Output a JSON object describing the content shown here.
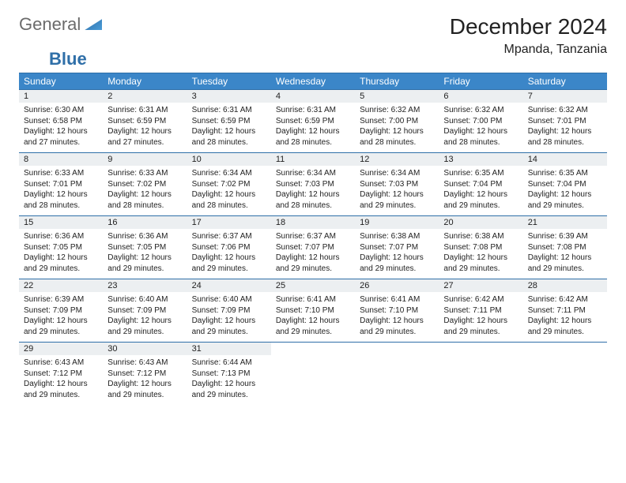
{
  "logo": {
    "word1": "General",
    "word2": "Blue"
  },
  "title": "December 2024",
  "location": "Mpanda, Tanzania",
  "colors": {
    "header_bg": "#3b86c8",
    "header_text": "#ffffff",
    "border": "#2f6fa8",
    "daynum_bg": "#eceff1",
    "text": "#222222",
    "logo_gray": "#6b6b6b",
    "logo_blue": "#2f6fa8",
    "page_bg": "#ffffff"
  },
  "weekdays": [
    "Sunday",
    "Monday",
    "Tuesday",
    "Wednesday",
    "Thursday",
    "Friday",
    "Saturday"
  ],
  "days": [
    {
      "n": 1,
      "sr": "6:30 AM",
      "ss": "6:58 PM",
      "dl": "12 hours and 27 minutes."
    },
    {
      "n": 2,
      "sr": "6:31 AM",
      "ss": "6:59 PM",
      "dl": "12 hours and 27 minutes."
    },
    {
      "n": 3,
      "sr": "6:31 AM",
      "ss": "6:59 PM",
      "dl": "12 hours and 28 minutes."
    },
    {
      "n": 4,
      "sr": "6:31 AM",
      "ss": "6:59 PM",
      "dl": "12 hours and 28 minutes."
    },
    {
      "n": 5,
      "sr": "6:32 AM",
      "ss": "7:00 PM",
      "dl": "12 hours and 28 minutes."
    },
    {
      "n": 6,
      "sr": "6:32 AM",
      "ss": "7:00 PM",
      "dl": "12 hours and 28 minutes."
    },
    {
      "n": 7,
      "sr": "6:32 AM",
      "ss": "7:01 PM",
      "dl": "12 hours and 28 minutes."
    },
    {
      "n": 8,
      "sr": "6:33 AM",
      "ss": "7:01 PM",
      "dl": "12 hours and 28 minutes."
    },
    {
      "n": 9,
      "sr": "6:33 AM",
      "ss": "7:02 PM",
      "dl": "12 hours and 28 minutes."
    },
    {
      "n": 10,
      "sr": "6:34 AM",
      "ss": "7:02 PM",
      "dl": "12 hours and 28 minutes."
    },
    {
      "n": 11,
      "sr": "6:34 AM",
      "ss": "7:03 PM",
      "dl": "12 hours and 28 minutes."
    },
    {
      "n": 12,
      "sr": "6:34 AM",
      "ss": "7:03 PM",
      "dl": "12 hours and 29 minutes."
    },
    {
      "n": 13,
      "sr": "6:35 AM",
      "ss": "7:04 PM",
      "dl": "12 hours and 29 minutes."
    },
    {
      "n": 14,
      "sr": "6:35 AM",
      "ss": "7:04 PM",
      "dl": "12 hours and 29 minutes."
    },
    {
      "n": 15,
      "sr": "6:36 AM",
      "ss": "7:05 PM",
      "dl": "12 hours and 29 minutes."
    },
    {
      "n": 16,
      "sr": "6:36 AM",
      "ss": "7:05 PM",
      "dl": "12 hours and 29 minutes."
    },
    {
      "n": 17,
      "sr": "6:37 AM",
      "ss": "7:06 PM",
      "dl": "12 hours and 29 minutes."
    },
    {
      "n": 18,
      "sr": "6:37 AM",
      "ss": "7:07 PM",
      "dl": "12 hours and 29 minutes."
    },
    {
      "n": 19,
      "sr": "6:38 AM",
      "ss": "7:07 PM",
      "dl": "12 hours and 29 minutes."
    },
    {
      "n": 20,
      "sr": "6:38 AM",
      "ss": "7:08 PM",
      "dl": "12 hours and 29 minutes."
    },
    {
      "n": 21,
      "sr": "6:39 AM",
      "ss": "7:08 PM",
      "dl": "12 hours and 29 minutes."
    },
    {
      "n": 22,
      "sr": "6:39 AM",
      "ss": "7:09 PM",
      "dl": "12 hours and 29 minutes."
    },
    {
      "n": 23,
      "sr": "6:40 AM",
      "ss": "7:09 PM",
      "dl": "12 hours and 29 minutes."
    },
    {
      "n": 24,
      "sr": "6:40 AM",
      "ss": "7:09 PM",
      "dl": "12 hours and 29 minutes."
    },
    {
      "n": 25,
      "sr": "6:41 AM",
      "ss": "7:10 PM",
      "dl": "12 hours and 29 minutes."
    },
    {
      "n": 26,
      "sr": "6:41 AM",
      "ss": "7:10 PM",
      "dl": "12 hours and 29 minutes."
    },
    {
      "n": 27,
      "sr": "6:42 AM",
      "ss": "7:11 PM",
      "dl": "12 hours and 29 minutes."
    },
    {
      "n": 28,
      "sr": "6:42 AM",
      "ss": "7:11 PM",
      "dl": "12 hours and 29 minutes."
    },
    {
      "n": 29,
      "sr": "6:43 AM",
      "ss": "7:12 PM",
      "dl": "12 hours and 29 minutes."
    },
    {
      "n": 30,
      "sr": "6:43 AM",
      "ss": "7:12 PM",
      "dl": "12 hours and 29 minutes."
    },
    {
      "n": 31,
      "sr": "6:44 AM",
      "ss": "7:13 PM",
      "dl": "12 hours and 29 minutes."
    }
  ],
  "labels": {
    "sunrise": "Sunrise: ",
    "sunset": "Sunset: ",
    "daylight": "Daylight: "
  },
  "layout": {
    "start_weekday": 0,
    "columns": 7
  },
  "fonts": {
    "title_size": 28,
    "location_size": 16,
    "th_size": 12,
    "daynum_size": 11,
    "body_size": 10
  }
}
